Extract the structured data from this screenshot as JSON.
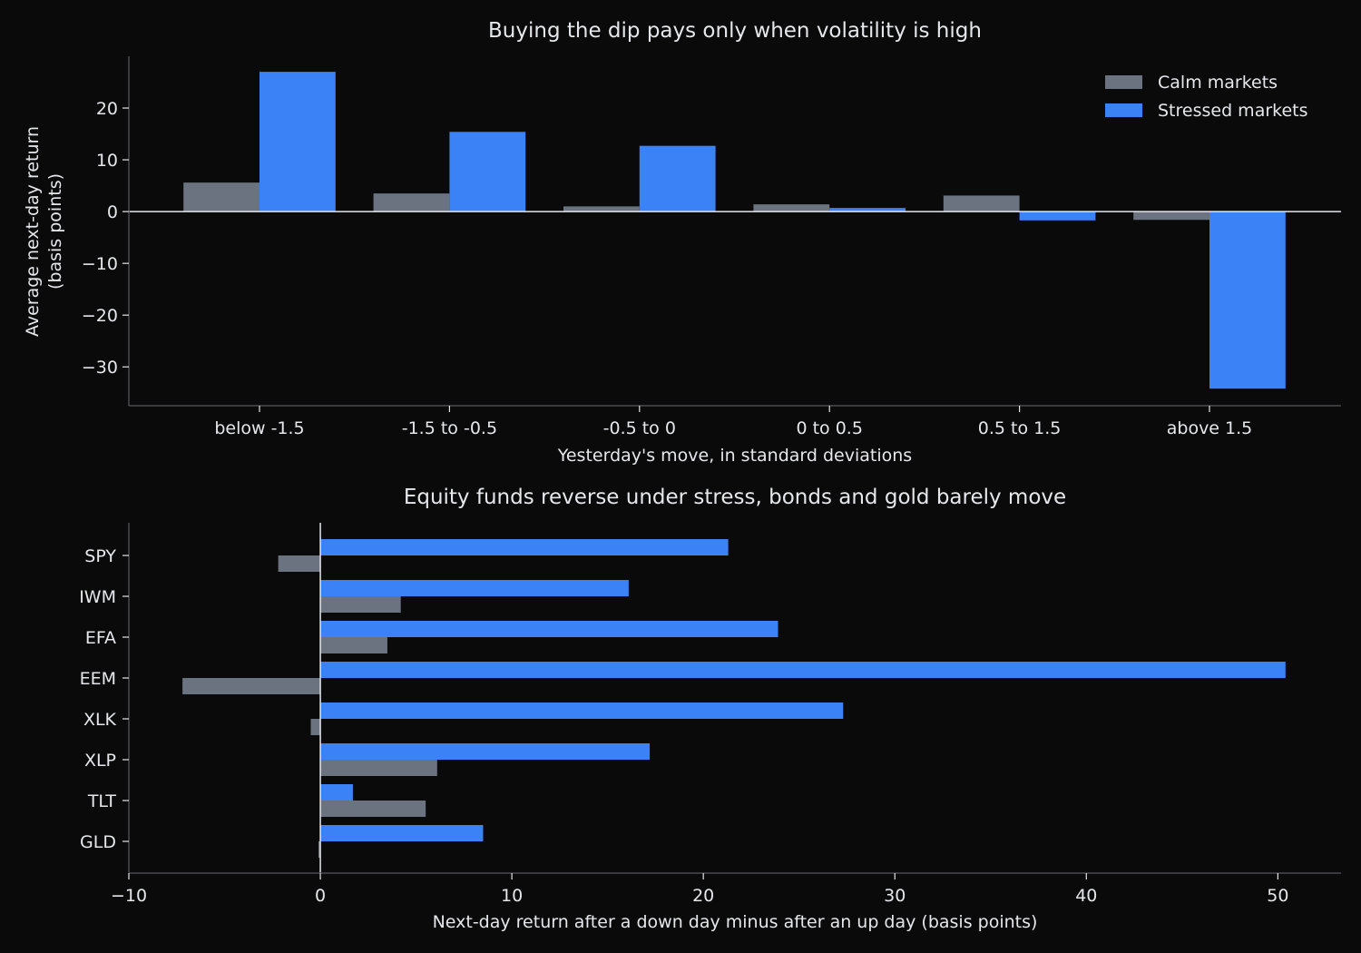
{
  "colors": {
    "background": "#0a0a0b",
    "calm": "#6b7280",
    "stressed": "#3b82f6",
    "text": "#e5e7eb",
    "axis": "#4b4b4f",
    "zero_line": "#e5e7eb"
  },
  "chart_data": [
    {
      "type": "bar",
      "orientation": "vertical",
      "title": "Buying the dip pays only when volatility is high",
      "xlabel": "Yesterday's move, in standard deviations",
      "ylabel_lines": [
        "Average next-day return",
        "(basis points)"
      ],
      "categories": [
        "below -1.5",
        "-1.5 to -0.5",
        "-0.5 to 0",
        "0 to 0.5",
        "0.5 to 1.5",
        "above 1.5"
      ],
      "series": [
        {
          "name": "Calm markets",
          "color_key": "calm",
          "values": [
            5.6,
            3.5,
            1.0,
            1.4,
            3.1,
            -1.6
          ]
        },
        {
          "name": "Stressed markets",
          "color_key": "stressed",
          "values": [
            27.0,
            15.4,
            12.7,
            0.7,
            -1.7,
            -34.2
          ]
        }
      ],
      "ylim": [
        -37.5,
        30
      ],
      "yticks": [
        20,
        10,
        0,
        -10,
        -20,
        -30
      ],
      "ytick_labels": [
        "20",
        "10",
        "0",
        "−10",
        "−20",
        "−30"
      ],
      "legend_position": "top-right",
      "grid": false
    },
    {
      "type": "bar",
      "orientation": "horizontal",
      "title": "Equity funds reverse under stress, bonds and gold barely move",
      "xlabel": "Next-day return after a down day minus after an up day (basis points)",
      "categories": [
        "SPY",
        "IWM",
        "EFA",
        "EEM",
        "XLK",
        "XLP",
        "TLT",
        "GLD"
      ],
      "series": [
        {
          "name": "Calm markets",
          "color_key": "calm",
          "values": [
            -2.2,
            4.2,
            3.5,
            -7.2,
            -0.5,
            6.1,
            5.5,
            -0.1
          ]
        },
        {
          "name": "Stressed markets",
          "color_key": "stressed",
          "values": [
            21.3,
            16.1,
            23.9,
            50.4,
            27.3,
            17.2,
            1.7,
            8.5
          ]
        }
      ],
      "xlim": [
        -10,
        53.3
      ],
      "xticks": [
        -10,
        0,
        10,
        20,
        30,
        40,
        50
      ],
      "xtick_labels": [
        "−10",
        "0",
        "10",
        "20",
        "30",
        "40",
        "50"
      ],
      "grid": false
    }
  ]
}
